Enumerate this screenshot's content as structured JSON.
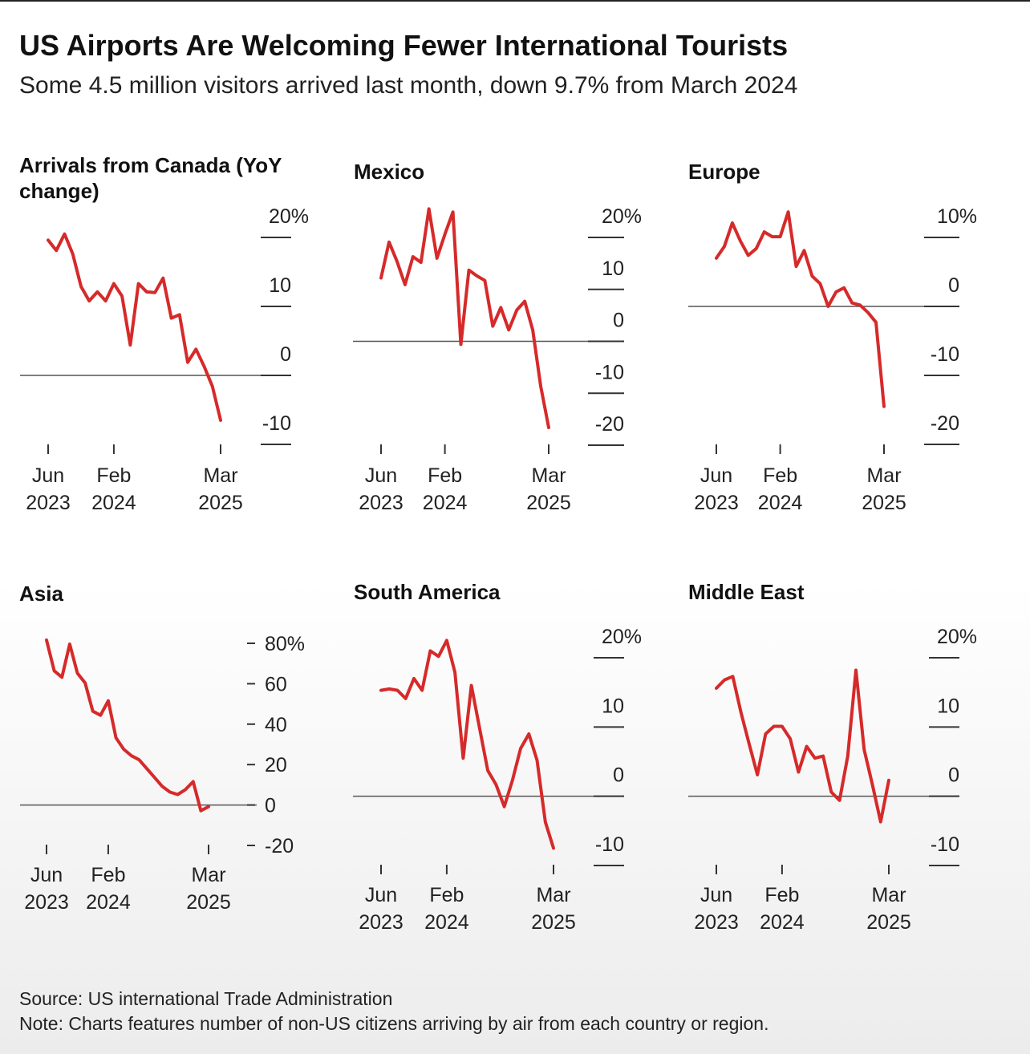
{
  "title": "US Airports Are Welcoming Fewer International Tourists",
  "subtitle": "Some 4.5 million visitors arrived last month, down 9.7% from March 2024",
  "source": "Source: US international Trade Administration",
  "note": "Note: Charts features number of non-US citizens arriving by air from each country or region.",
  "chart_data": [
    {
      "type": "line",
      "title": "Arrivals from Canada (YoY change)",
      "color": "#d62a2a",
      "categories": [
        "Jun 2023",
        null,
        null,
        null,
        null,
        null,
        null,
        null,
        "Feb 2024",
        null,
        null,
        null,
        null,
        null,
        null,
        null,
        null,
        null,
        null,
        null,
        null,
        "Mar 2025"
      ],
      "values": [
        19.6,
        18.1,
        20.5,
        17.6,
        12.9,
        10.8,
        12.1,
        10.8,
        13.3,
        11.5,
        4.4,
        13.3,
        12.1,
        12.0,
        14.1,
        8.3,
        8.8,
        1.9,
        3.8,
        1.3,
        -1.6,
        -6.5
      ],
      "ylim": [
        -10,
        20
      ],
      "yticks": [
        {
          "value": 20,
          "label": "20%"
        },
        10,
        0,
        -10
      ]
    },
    {
      "type": "line",
      "title": "Mexico",
      "color": "#d62a2a",
      "categories": [
        "Jun 2023",
        null,
        null,
        null,
        null,
        null,
        null,
        null,
        "Feb 2024",
        null,
        null,
        null,
        null,
        null,
        null,
        null,
        null,
        null,
        null,
        null,
        null,
        "Mar 2025"
      ],
      "values": [
        12.2,
        19.1,
        15.4,
        10.9,
        16.3,
        15.2,
        25.5,
        16.0,
        20.6,
        24.9,
        -0.6,
        13.7,
        12.6,
        11.7,
        2.9,
        6.5,
        2.2,
        6.0,
        7.7,
        2.2,
        -8.6,
        -16.6
      ],
      "ylim": [
        -20,
        20
      ],
      "yticks": [
        {
          "value": 20,
          "label": "20%"
        },
        10,
        0,
        -10,
        -20
      ]
    },
    {
      "type": "line",
      "title": "Europe",
      "color": "#d62a2a",
      "categories": [
        "Jun 2023",
        null,
        null,
        null,
        null,
        null,
        null,
        null,
        "Feb 2024",
        null,
        null,
        null,
        null,
        null,
        null,
        null,
        null,
        null,
        null,
        null,
        null,
        "Mar 2025"
      ],
      "values": [
        7.0,
        8.7,
        12.1,
        9.5,
        7.4,
        8.4,
        10.8,
        10.1,
        10.1,
        13.7,
        5.8,
        8.1,
        4.4,
        3.3,
        0.0,
        2.1,
        2.7,
        0.5,
        0.2,
        -0.9,
        -2.3,
        -14.5
      ],
      "ylim": [
        -20,
        10
      ],
      "yticks": [
        {
          "value": 10,
          "label": "10%"
        },
        0,
        -10,
        -20
      ]
    },
    {
      "type": "line",
      "title": "Asia",
      "color": "#d62a2a",
      "categories": [
        "Jun 2023",
        null,
        null,
        null,
        null,
        null,
        null,
        null,
        "Feb 2024",
        null,
        null,
        null,
        null,
        null,
        null,
        null,
        null,
        null,
        null,
        null,
        null,
        "Mar 2025"
      ],
      "values": [
        81.6,
        66.4,
        63.2,
        79.6,
        65.2,
        60.4,
        46.4,
        44.4,
        51.6,
        33.2,
        27.6,
        24.4,
        22.4,
        18.0,
        13.6,
        9.2,
        6.4,
        5.2,
        7.6,
        11.6,
        -2.8,
        -0.8
      ],
      "ylim": [
        -20,
        80
      ],
      "yticks": [
        {
          "value": 80,
          "label": "80%"
        },
        60,
        40,
        20,
        0,
        -20
      ]
    },
    {
      "type": "line",
      "title": "South America",
      "color": "#d62a2a",
      "categories": [
        "Jun 2023",
        null,
        null,
        null,
        null,
        null,
        null,
        null,
        "Feb 2024",
        null,
        null,
        null,
        null,
        null,
        null,
        null,
        null,
        null,
        null,
        null,
        null,
        "Mar 2025"
      ],
      "values": [
        15.3,
        15.5,
        15.3,
        14.1,
        17.0,
        15.3,
        21.0,
        20.2,
        22.5,
        17.9,
        5.5,
        16.0,
        9.8,
        3.7,
        1.7,
        -1.5,
        2.3,
        6.9,
        9.0,
        5.2,
        -3.7,
        -7.5
      ],
      "ylim": [
        -10,
        20
      ],
      "yticks": [
        {
          "value": 20,
          "label": "20%"
        },
        10,
        0,
        -10
      ]
    },
    {
      "type": "line",
      "title": "Middle East",
      "color": "#d62a2a",
      "categories": [
        "Jun 2023",
        null,
        null,
        null,
        null,
        null,
        null,
        null,
        "Feb 2024",
        null,
        null,
        null,
        null,
        null,
        null,
        null,
        null,
        null,
        null,
        null,
        null,
        "Mar 2025"
      ],
      "values": [
        15.6,
        16.8,
        17.3,
        12.1,
        7.5,
        3.1,
        9.0,
        10.1,
        10.1,
        8.3,
        3.5,
        7.2,
        5.5,
        5.8,
        0.6,
        -0.6,
        5.8,
        18.2,
        6.7,
        1.7,
        -3.7,
        2.3
      ],
      "ylim": [
        -10,
        20
      ],
      "yticks": [
        {
          "value": 20,
          "label": "20%"
        },
        10,
        0,
        -10
      ]
    }
  ]
}
